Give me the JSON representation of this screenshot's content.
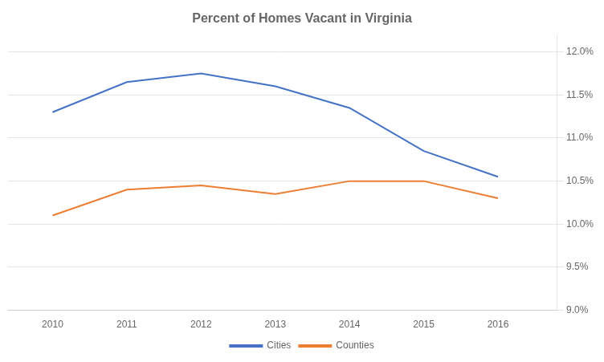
{
  "chart_data": {
    "type": "line",
    "title": "Percent of Homes Vacant in Virginia",
    "x": [
      2010,
      2011,
      2012,
      2013,
      2014,
      2015,
      2016
    ],
    "series": [
      {
        "name": "Cities",
        "color": "#4472C4",
        "values": [
          0.113,
          0.1165,
          0.1175,
          0.116,
          0.1135,
          0.1085,
          0.1055
        ]
      },
      {
        "name": "Counties",
        "color": "#ED7D31",
        "values": [
          0.101,
          0.104,
          0.1045,
          0.1035,
          0.105,
          0.105,
          0.103
        ]
      }
    ],
    "xlim": [
      2009.4,
      2016.8
    ],
    "xticks": [
      2010,
      2011,
      2012,
      2013,
      2014,
      2015,
      2016
    ],
    "ylim": [
      0.09,
      0.122
    ],
    "yticks": [
      {
        "value": 0.09,
        "label": "9.0%"
      },
      {
        "value": 0.095,
        "label": "9.5%"
      },
      {
        "value": 0.1,
        "label": "10.0%"
      },
      {
        "value": 0.105,
        "label": "10.5%"
      },
      {
        "value": 0.11,
        "label": "11.0%"
      },
      {
        "value": 0.115,
        "label": "11.5%"
      },
      {
        "value": 0.12,
        "label": "12.0%"
      }
    ],
    "grid": true,
    "legend": "bottom"
  }
}
